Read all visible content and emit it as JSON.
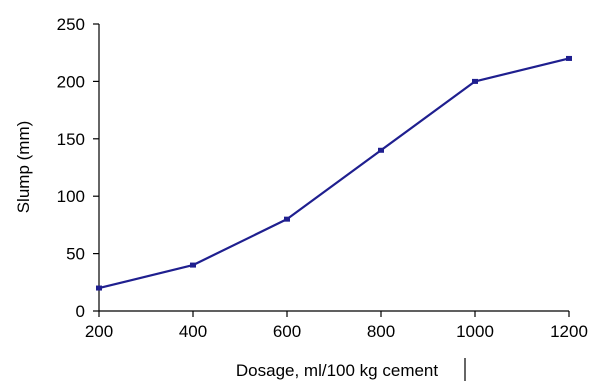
{
  "chart_data": {
    "type": "line",
    "title": "",
    "xlabel": "Dosage, ml/100 kg cement",
    "ylabel": "Slump (mm)",
    "x": [
      200,
      400,
      600,
      800,
      1000,
      1200
    ],
    "series": [
      {
        "values": [
          20,
          40,
          80,
          140,
          200,
          220
        ],
        "color": "#1f1f8f"
      }
    ],
    "xlim": [
      200,
      1200
    ],
    "ylim": [
      0,
      250
    ],
    "xticks": [
      "200",
      "400",
      "600",
      "800",
      "1000",
      "1200"
    ],
    "yticks": [
      "0",
      "50",
      "100",
      "150",
      "200",
      "250"
    ],
    "grid": false,
    "legend": "none"
  }
}
